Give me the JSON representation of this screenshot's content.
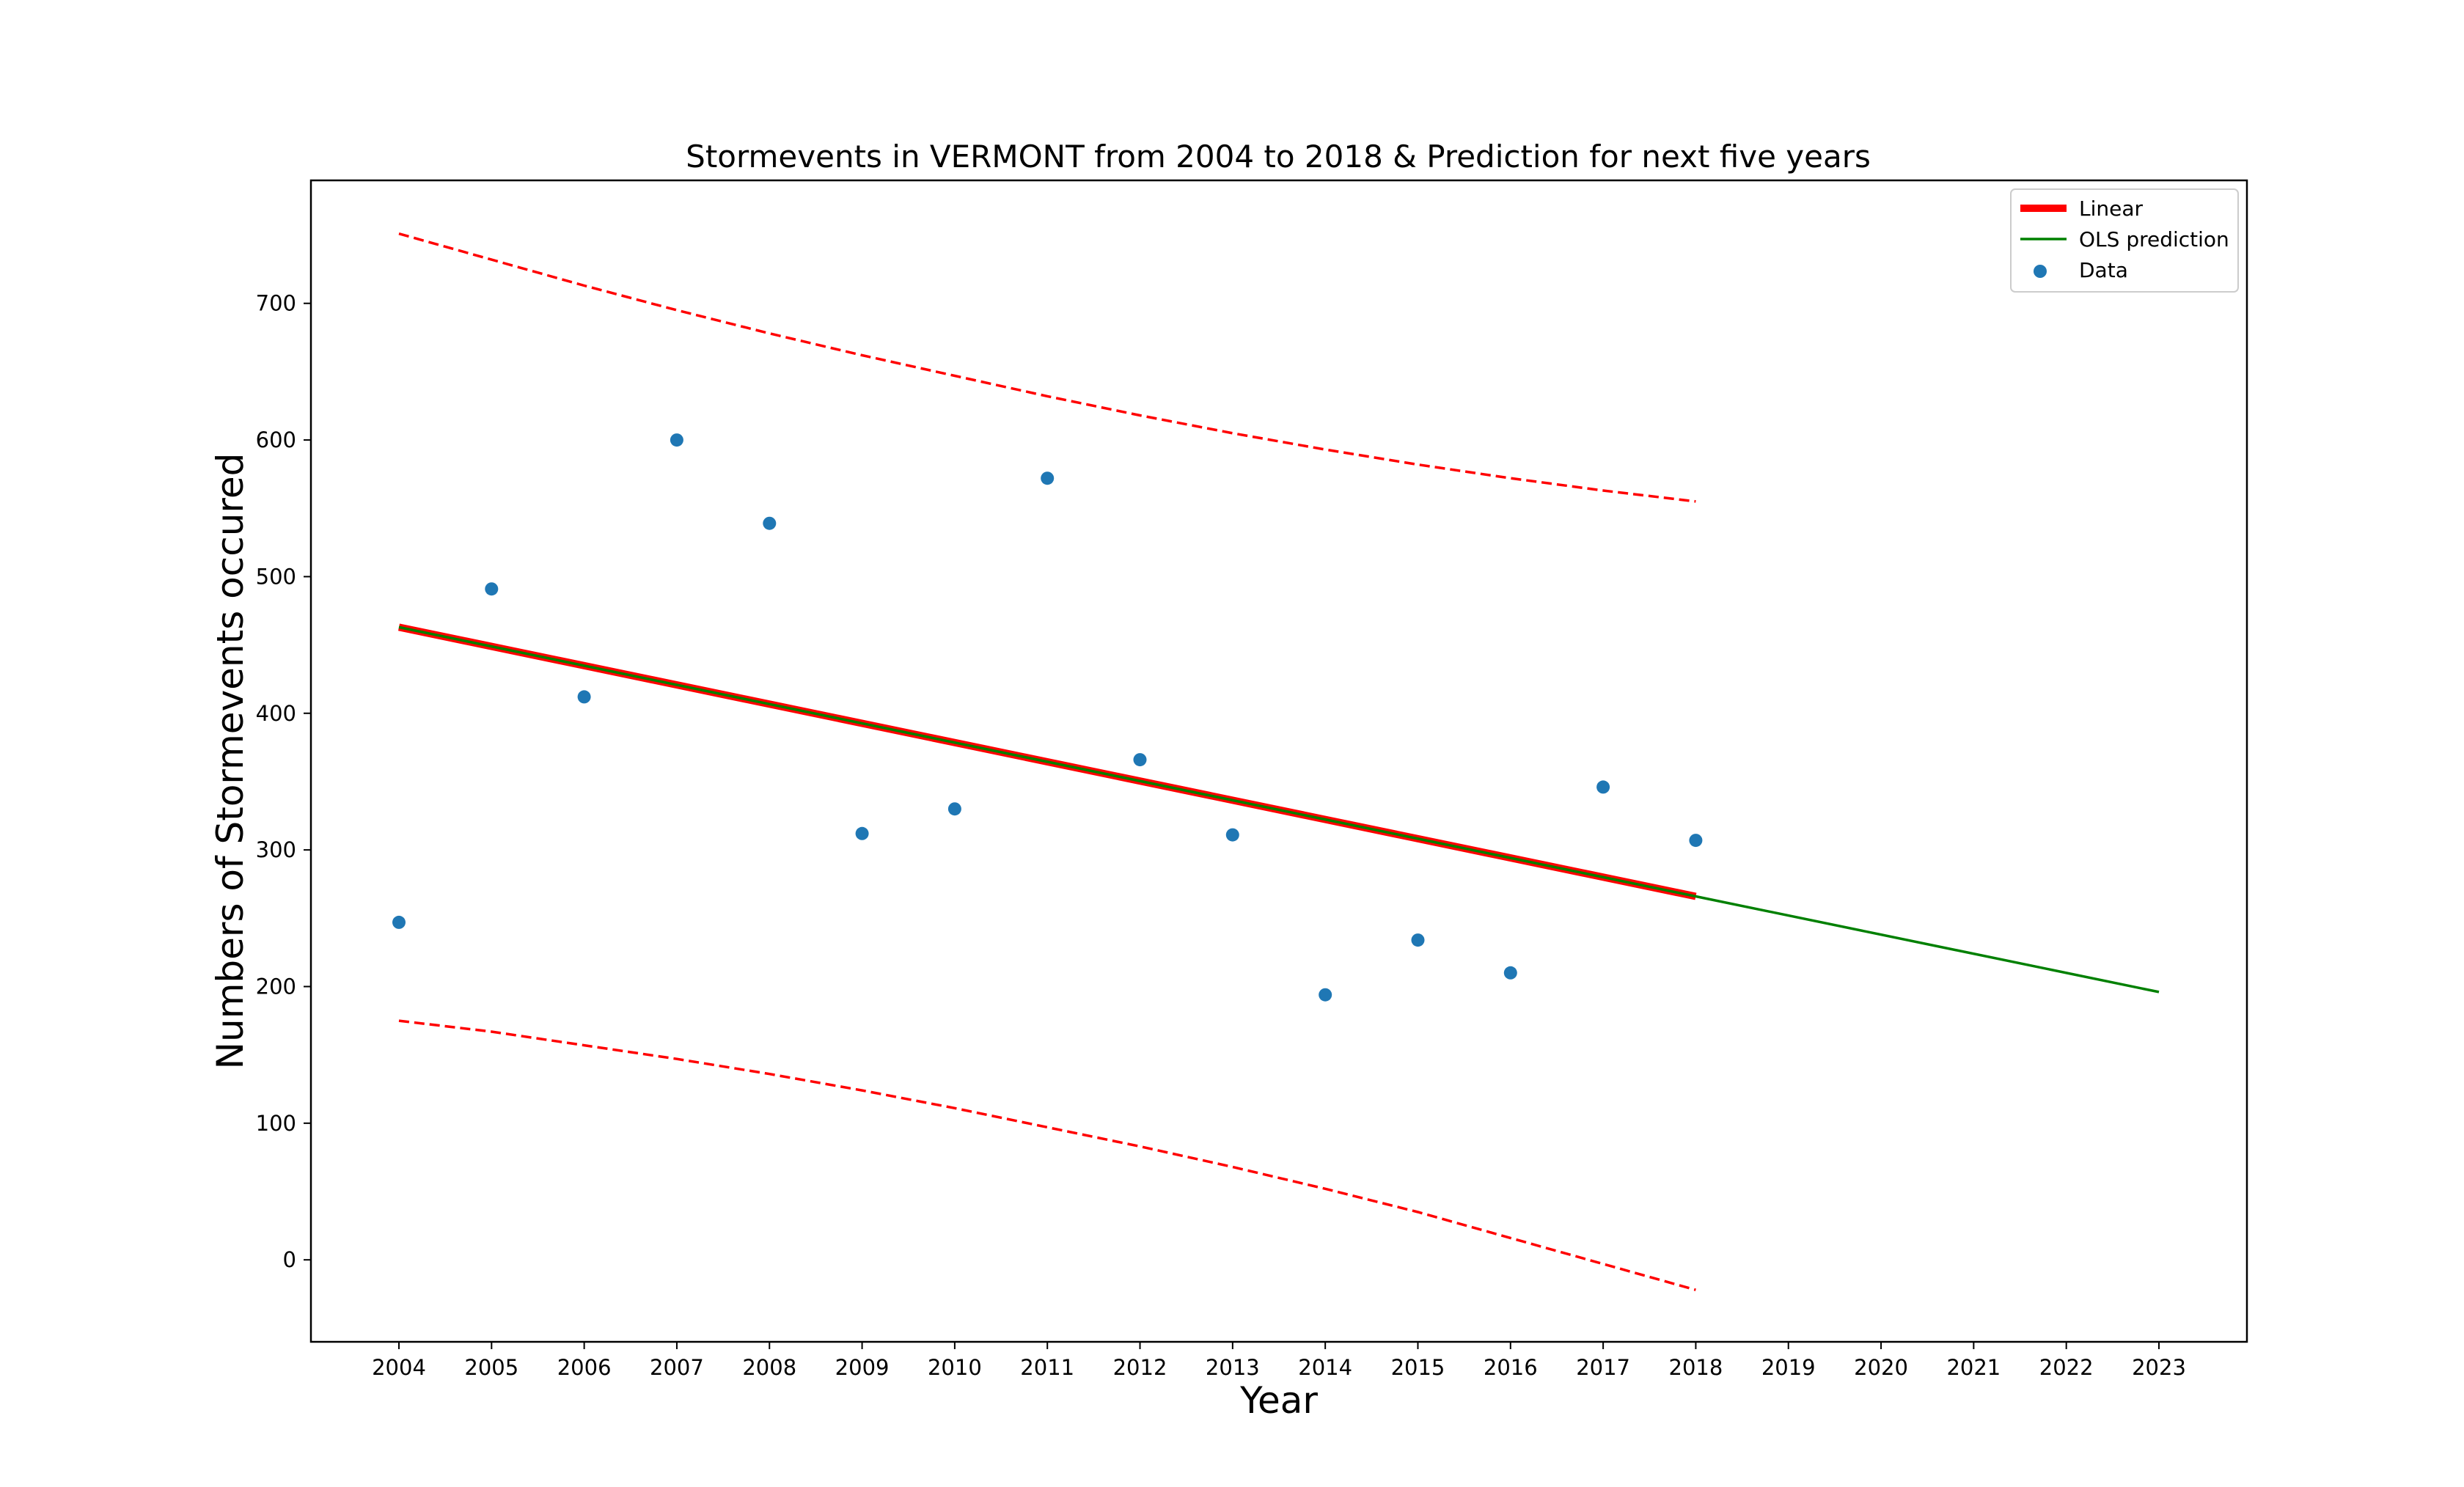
{
  "chart_data": {
    "type": "scatter",
    "title": "Stormevents in VERMONT from 2004 to 2018 & Prediction for next five years",
    "xlabel": "Year",
    "ylabel": "Numbers of Stormevents occured",
    "xlim": [
      2003.05,
      2023.95
    ],
    "ylim": [
      -60,
      790
    ],
    "xticks": [
      2004,
      2005,
      2006,
      2007,
      2008,
      2009,
      2010,
      2011,
      2012,
      2013,
      2014,
      2015,
      2016,
      2017,
      2018,
      2019,
      2020,
      2021,
      2022,
      2023
    ],
    "yticks": [
      0,
      100,
      200,
      300,
      400,
      500,
      600,
      700
    ],
    "grid": false,
    "legend_position": "top-right",
    "series": [
      {
        "name": "Data",
        "kind": "scatter",
        "color": "#1f77b4",
        "x": [
          2004,
          2005,
          2006,
          2007,
          2008,
          2009,
          2010,
          2011,
          2012,
          2013,
          2014,
          2015,
          2016,
          2017,
          2018
        ],
        "y": [
          247,
          491,
          412,
          600,
          539,
          312,
          330,
          572,
          366,
          311,
          194,
          234,
          210,
          346,
          307
        ]
      },
      {
        "name": "Linear",
        "kind": "line",
        "color": "#ff0000",
        "x": [
          2004,
          2018
        ],
        "y": [
          463,
          266
        ]
      },
      {
        "name": "OLS prediction",
        "kind": "line",
        "color": "#008000",
        "x": [
          2004,
          2018,
          2023
        ],
        "y": [
          463,
          266,
          196
        ]
      },
      {
        "kind": "dashed-band-upper",
        "color": "#ff0000",
        "x": [
          2004,
          2005,
          2006,
          2007,
          2008,
          2009,
          2010,
          2011,
          2012,
          2013,
          2014,
          2015,
          2016,
          2017,
          2018
        ],
        "y": [
          751,
          732,
          713,
          695,
          678,
          662,
          647,
          632,
          618,
          605,
          593,
          582,
          572,
          563,
          555
        ]
      },
      {
        "kind": "dashed-band-lower",
        "color": "#ff0000",
        "x": [
          2004,
          2005,
          2006,
          2007,
          2008,
          2009,
          2010,
          2011,
          2012,
          2013,
          2014,
          2015,
          2016,
          2017,
          2018
        ],
        "y": [
          175,
          167,
          157,
          147,
          136,
          124,
          111,
          97,
          83,
          68,
          52,
          35,
          16,
          -3,
          -22
        ]
      }
    ]
  }
}
